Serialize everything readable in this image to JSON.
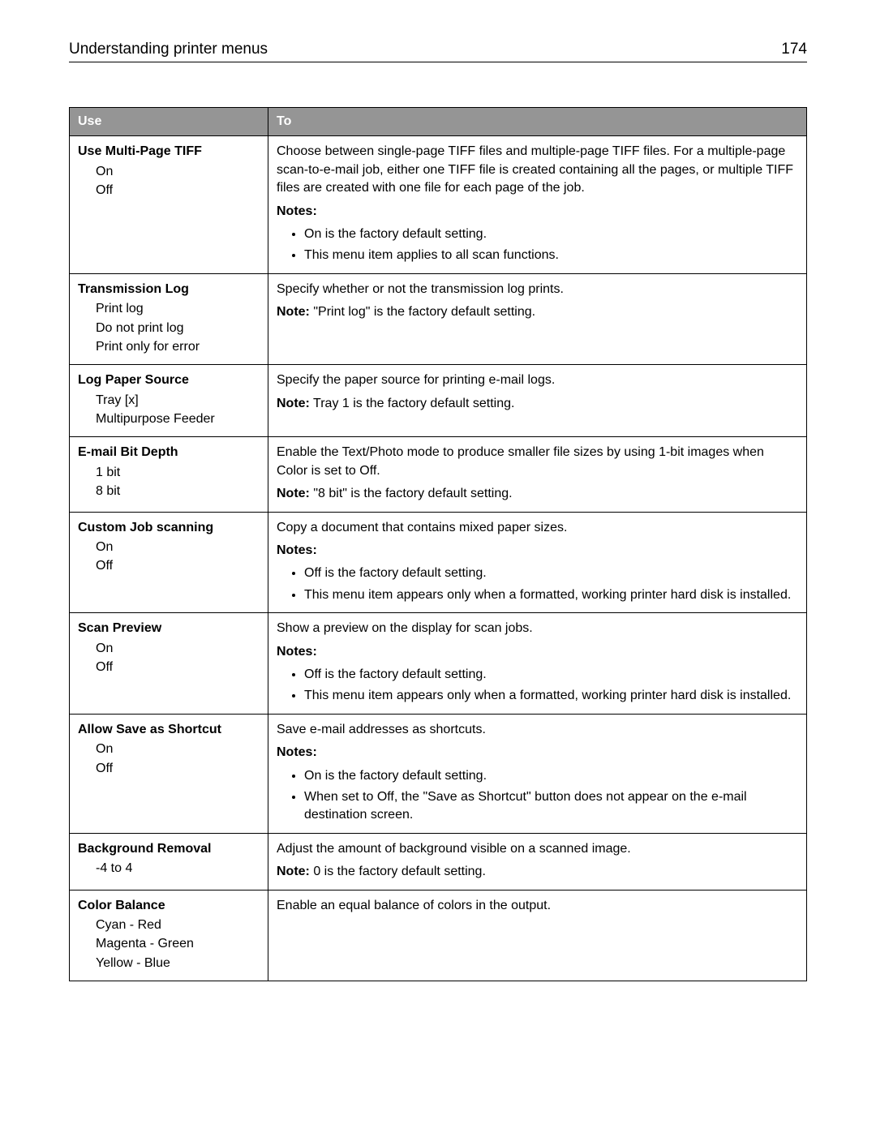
{
  "header": {
    "title": "Understanding printer menus",
    "page_number": "174"
  },
  "table": {
    "columns": {
      "use": "Use",
      "to": "To"
    },
    "rows": [
      {
        "use_title": "Use Multi-Page TIFF",
        "options": [
          "On",
          "Off"
        ],
        "desc": "Choose between single-page TIFF files and multiple-page TIFF files. For a multiple-page scan-to-e-mail job, either one TIFF file is created containing all the pages, or multiple TIFF files are created with one file for each page of the job.",
        "notes_heading": "Notes:",
        "notes": [
          "On is the factory default setting.",
          "This menu item applies to all scan functions."
        ]
      },
      {
        "use_title": "Transmission Log",
        "options": [
          "Print log",
          "Do not print log",
          "Print only for error"
        ],
        "desc": "Specify whether or not the transmission log prints.",
        "note_label": "Note:",
        "note_text": " \"Print log\" is the factory default setting."
      },
      {
        "use_title": "Log Paper Source",
        "options": [
          "Tray [x]",
          "Multipurpose Feeder"
        ],
        "desc": "Specify the paper source for printing e-mail logs.",
        "note_label": "Note:",
        "note_text": " Tray 1 is the factory default setting."
      },
      {
        "use_title": "E-mail Bit Depth",
        "options": [
          "1 bit",
          "8 bit"
        ],
        "desc": "Enable the Text/Photo mode to produce smaller file sizes by using 1-bit images when Color is set to Off.",
        "note_label": "Note:",
        "note_text": " \"8 bit\" is the factory default setting."
      },
      {
        "use_title": "Custom Job scanning",
        "options": [
          "On",
          "Off"
        ],
        "desc": "Copy a document that contains mixed paper sizes.",
        "notes_heading": "Notes:",
        "notes": [
          "Off is the factory default setting.",
          "This menu item appears only when a formatted, working printer hard disk is installed."
        ]
      },
      {
        "use_title": "Scan Preview",
        "options": [
          "On",
          "Off"
        ],
        "desc": "Show a preview on the display for scan jobs.",
        "notes_heading": "Notes:",
        "notes": [
          "Off is the factory default setting.",
          "This menu item appears only when a formatted, working printer hard disk is installed."
        ]
      },
      {
        "use_title": "Allow Save as Shortcut",
        "options": [
          "On",
          "Off"
        ],
        "desc": "Save e-mail addresses as shortcuts.",
        "notes_heading": "Notes:",
        "notes": [
          "On is the factory default setting.",
          "When set to Off, the \"Save as Shortcut\" button does not appear on the e-mail destination screen."
        ]
      },
      {
        "use_title": "Background Removal",
        "options": [
          "-4 to 4"
        ],
        "desc": "Adjust the amount of background visible on a scanned image.",
        "note_label": "Note:",
        "note_text": " 0 is the factory default setting."
      },
      {
        "use_title": "Color Balance",
        "options": [
          "Cyan - Red",
          "Magenta - Green",
          "Yellow - Blue"
        ],
        "desc": "Enable an equal balance of colors in the output."
      }
    ]
  }
}
